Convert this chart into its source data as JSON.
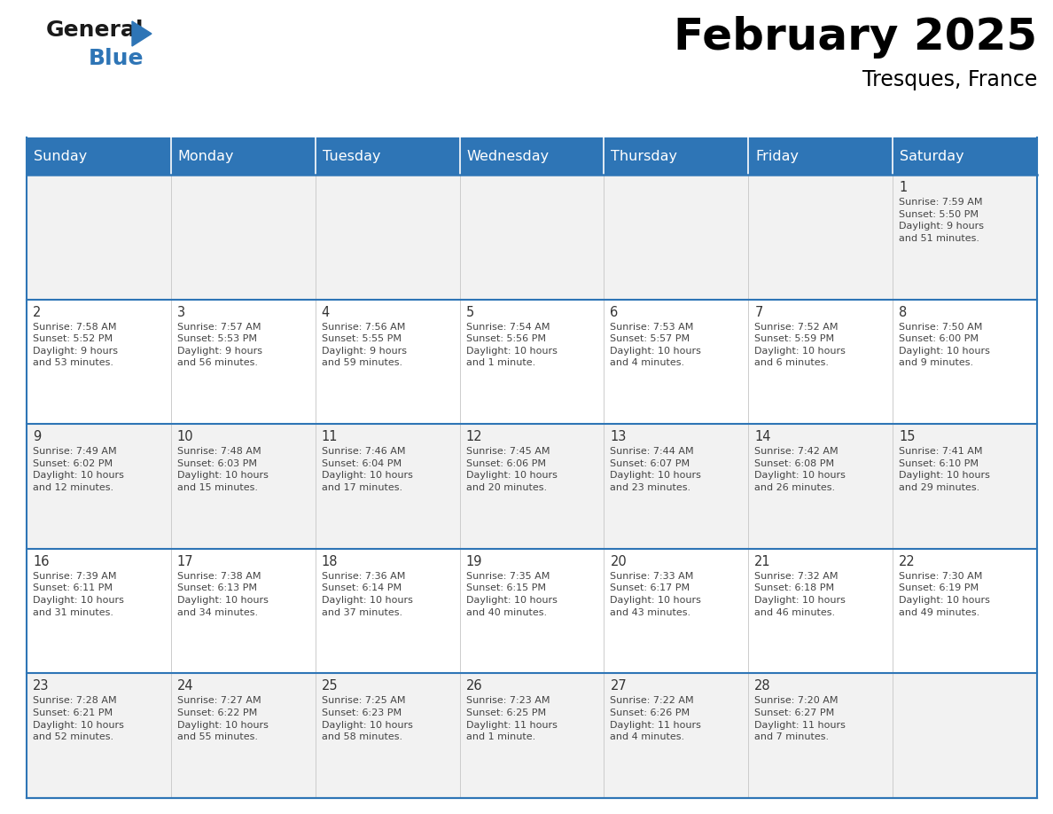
{
  "title": "February 2025",
  "subtitle": "Tresques, France",
  "header_bg_color": "#2E75B6",
  "header_text_color": "#FFFFFF",
  "day_headers": [
    "Sunday",
    "Monday",
    "Tuesday",
    "Wednesday",
    "Thursday",
    "Friday",
    "Saturday"
  ],
  "calendar": [
    [
      {
        "day": null,
        "info": null
      },
      {
        "day": null,
        "info": null
      },
      {
        "day": null,
        "info": null
      },
      {
        "day": null,
        "info": null
      },
      {
        "day": null,
        "info": null
      },
      {
        "day": null,
        "info": null
      },
      {
        "day": 1,
        "info": "Sunrise: 7:59 AM\nSunset: 5:50 PM\nDaylight: 9 hours\nand 51 minutes."
      }
    ],
    [
      {
        "day": 2,
        "info": "Sunrise: 7:58 AM\nSunset: 5:52 PM\nDaylight: 9 hours\nand 53 minutes."
      },
      {
        "day": 3,
        "info": "Sunrise: 7:57 AM\nSunset: 5:53 PM\nDaylight: 9 hours\nand 56 minutes."
      },
      {
        "day": 4,
        "info": "Sunrise: 7:56 AM\nSunset: 5:55 PM\nDaylight: 9 hours\nand 59 minutes."
      },
      {
        "day": 5,
        "info": "Sunrise: 7:54 AM\nSunset: 5:56 PM\nDaylight: 10 hours\nand 1 minute."
      },
      {
        "day": 6,
        "info": "Sunrise: 7:53 AM\nSunset: 5:57 PM\nDaylight: 10 hours\nand 4 minutes."
      },
      {
        "day": 7,
        "info": "Sunrise: 7:52 AM\nSunset: 5:59 PM\nDaylight: 10 hours\nand 6 minutes."
      },
      {
        "day": 8,
        "info": "Sunrise: 7:50 AM\nSunset: 6:00 PM\nDaylight: 10 hours\nand 9 minutes."
      }
    ],
    [
      {
        "day": 9,
        "info": "Sunrise: 7:49 AM\nSunset: 6:02 PM\nDaylight: 10 hours\nand 12 minutes."
      },
      {
        "day": 10,
        "info": "Sunrise: 7:48 AM\nSunset: 6:03 PM\nDaylight: 10 hours\nand 15 minutes."
      },
      {
        "day": 11,
        "info": "Sunrise: 7:46 AM\nSunset: 6:04 PM\nDaylight: 10 hours\nand 17 minutes."
      },
      {
        "day": 12,
        "info": "Sunrise: 7:45 AM\nSunset: 6:06 PM\nDaylight: 10 hours\nand 20 minutes."
      },
      {
        "day": 13,
        "info": "Sunrise: 7:44 AM\nSunset: 6:07 PM\nDaylight: 10 hours\nand 23 minutes."
      },
      {
        "day": 14,
        "info": "Sunrise: 7:42 AM\nSunset: 6:08 PM\nDaylight: 10 hours\nand 26 minutes."
      },
      {
        "day": 15,
        "info": "Sunrise: 7:41 AM\nSunset: 6:10 PM\nDaylight: 10 hours\nand 29 minutes."
      }
    ],
    [
      {
        "day": 16,
        "info": "Sunrise: 7:39 AM\nSunset: 6:11 PM\nDaylight: 10 hours\nand 31 minutes."
      },
      {
        "day": 17,
        "info": "Sunrise: 7:38 AM\nSunset: 6:13 PM\nDaylight: 10 hours\nand 34 minutes."
      },
      {
        "day": 18,
        "info": "Sunrise: 7:36 AM\nSunset: 6:14 PM\nDaylight: 10 hours\nand 37 minutes."
      },
      {
        "day": 19,
        "info": "Sunrise: 7:35 AM\nSunset: 6:15 PM\nDaylight: 10 hours\nand 40 minutes."
      },
      {
        "day": 20,
        "info": "Sunrise: 7:33 AM\nSunset: 6:17 PM\nDaylight: 10 hours\nand 43 minutes."
      },
      {
        "day": 21,
        "info": "Sunrise: 7:32 AM\nSunset: 6:18 PM\nDaylight: 10 hours\nand 46 minutes."
      },
      {
        "day": 22,
        "info": "Sunrise: 7:30 AM\nSunset: 6:19 PM\nDaylight: 10 hours\nand 49 minutes."
      }
    ],
    [
      {
        "day": 23,
        "info": "Sunrise: 7:28 AM\nSunset: 6:21 PM\nDaylight: 10 hours\nand 52 minutes."
      },
      {
        "day": 24,
        "info": "Sunrise: 7:27 AM\nSunset: 6:22 PM\nDaylight: 10 hours\nand 55 minutes."
      },
      {
        "day": 25,
        "info": "Sunrise: 7:25 AM\nSunset: 6:23 PM\nDaylight: 10 hours\nand 58 minutes."
      },
      {
        "day": 26,
        "info": "Sunrise: 7:23 AM\nSunset: 6:25 PM\nDaylight: 11 hours\nand 1 minute."
      },
      {
        "day": 27,
        "info": "Sunrise: 7:22 AM\nSunset: 6:26 PM\nDaylight: 11 hours\nand 4 minutes."
      },
      {
        "day": 28,
        "info": "Sunrise: 7:20 AM\nSunset: 6:27 PM\nDaylight: 11 hours\nand 7 minutes."
      },
      {
        "day": null,
        "info": null
      }
    ]
  ],
  "logo_triangle_color": "#2E75B6",
  "border_color": "#2E75B6",
  "row_colors": [
    "#F2F2F2",
    "#FFFFFF",
    "#F2F2F2",
    "#FFFFFF",
    "#F2F2F2"
  ]
}
